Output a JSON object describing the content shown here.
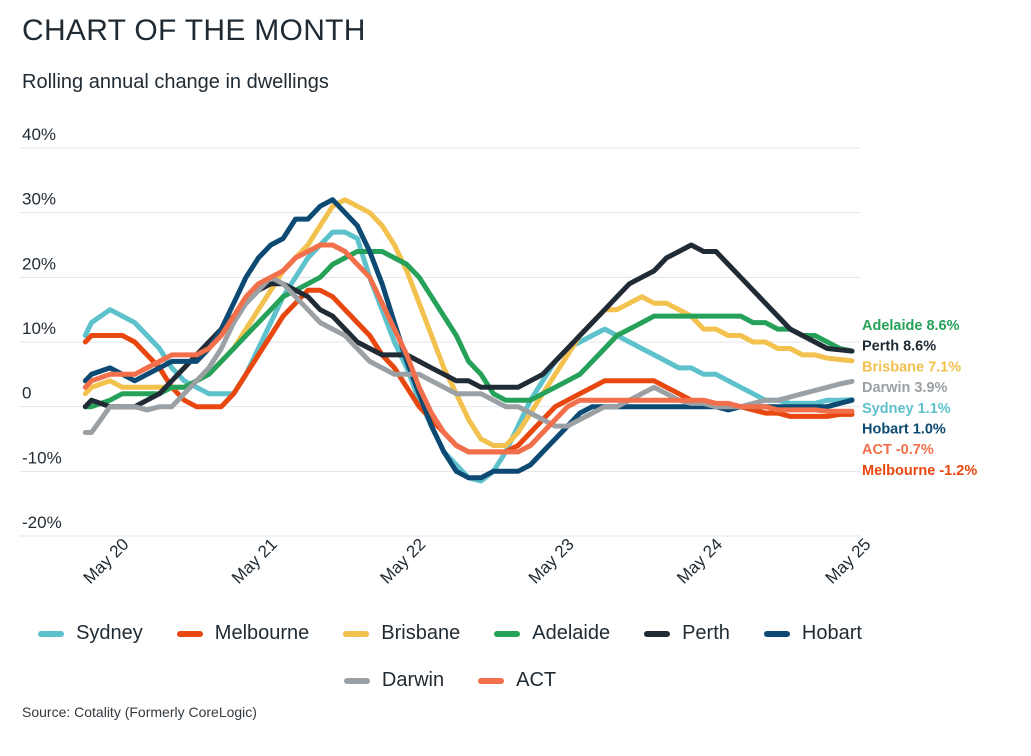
{
  "header": {
    "title": "CHART OF THE MONTH",
    "subtitle": "Rolling annual change in dwellings"
  },
  "source": "Source: Cotality (Formerly CoreLogic)",
  "chart_data": {
    "type": "line",
    "ylim": [
      -20,
      40
    ],
    "yticks": [
      40,
      30,
      20,
      10,
      0,
      -10,
      -20
    ],
    "ytick_labels": [
      "40%",
      "30%",
      "20%",
      "10%",
      "0",
      "-10%",
      "-20%"
    ],
    "x_ticks": [
      0,
      12,
      24,
      36,
      48,
      60
    ],
    "x_tick_labels": [
      "May 20",
      "May 21",
      "May 22",
      "May 23",
      "May 24",
      "May 25"
    ],
    "grid": true,
    "legend": "bottom",
    "series": [
      {
        "name": "Sydney",
        "color": "#5ec2cc",
        "end_label": "Sydney 1.1%",
        "x": [
          -2,
          -1.5,
          0,
          1,
          2,
          3,
          4,
          5,
          6,
          7,
          8,
          9,
          10,
          11,
          12,
          13,
          14,
          15,
          16,
          17,
          18,
          19,
          20,
          21,
          22,
          23,
          24,
          25,
          26,
          27,
          28,
          29,
          30,
          31,
          32,
          33,
          34,
          35,
          36,
          37,
          38,
          39,
          40,
          41,
          42,
          43,
          44,
          45,
          46,
          47,
          48,
          49,
          50,
          51,
          52,
          53,
          54,
          55,
          56,
          57,
          58,
          59,
          60
        ],
        "y": [
          11,
          13,
          15,
          14,
          13,
          11,
          9,
          6,
          4,
          3,
          2,
          2,
          2,
          5,
          9,
          13,
          17,
          20,
          23,
          25,
          27,
          27,
          26,
          20,
          15,
          10,
          6,
          1,
          -3,
          -7,
          -9,
          -11,
          -11.5,
          -10,
          -7,
          -3,
          1,
          4,
          7,
          9,
          10,
          11,
          12,
          11,
          10,
          9,
          8,
          7,
          6,
          6,
          5,
          5,
          4,
          3,
          2,
          1,
          1,
          0.5,
          0.5,
          0.5,
          1,
          1,
          1.1
        ]
      },
      {
        "name": "Melbourne",
        "color": "#e8470f",
        "end_label": "Melbourne -1.2%",
        "x": [
          -2,
          -1.5,
          0,
          1,
          2,
          3,
          4,
          5,
          6,
          7,
          8,
          9,
          10,
          11,
          12,
          13,
          14,
          15,
          16,
          17,
          18,
          19,
          20,
          21,
          22,
          23,
          24,
          25,
          26,
          27,
          28,
          29,
          30,
          31,
          32,
          33,
          34,
          35,
          36,
          37,
          38,
          39,
          40,
          41,
          42,
          43,
          44,
          45,
          46,
          47,
          48,
          49,
          50,
          51,
          52,
          53,
          54,
          55,
          56,
          57,
          58,
          59,
          60
        ],
        "y": [
          10,
          11,
          11,
          11,
          10,
          8,
          6,
          3,
          1,
          0,
          0,
          0,
          2,
          5,
          8,
          11,
          14,
          16,
          18,
          18,
          17,
          15,
          13,
          11,
          8,
          6,
          3,
          0,
          -2,
          -4,
          -6,
          -7,
          -7,
          -7,
          -7,
          -6,
          -4,
          -2,
          0,
          1,
          2,
          3,
          4,
          4,
          4,
          4,
          4,
          3,
          2,
          1,
          0.5,
          0.5,
          0,
          0,
          -0.5,
          -1,
          -1,
          -1.5,
          -1.5,
          -1.5,
          -1.5,
          -1.2,
          -1.2
        ]
      },
      {
        "name": "Brisbane",
        "color": "#f2c14e",
        "end_label": "Brisbane 7.1%",
        "x": [
          -2,
          -1.5,
          0,
          1,
          2,
          3,
          4,
          5,
          6,
          7,
          8,
          9,
          10,
          11,
          12,
          13,
          14,
          15,
          16,
          17,
          18,
          19,
          20,
          21,
          22,
          23,
          24,
          25,
          26,
          27,
          28,
          29,
          30,
          31,
          32,
          33,
          34,
          35,
          36,
          37,
          38,
          39,
          40,
          41,
          42,
          43,
          44,
          45,
          46,
          47,
          48,
          49,
          50,
          51,
          52,
          53,
          54,
          55,
          56,
          57,
          58,
          59,
          60
        ],
        "y": [
          2,
          3,
          4,
          3,
          3,
          3,
          3,
          3,
          3,
          4,
          5,
          7,
          9,
          12,
          15,
          18,
          21,
          23,
          25,
          28,
          31,
          32,
          31,
          30,
          28,
          25,
          21,
          16,
          11,
          6,
          2,
          -2,
          -5,
          -6,
          -6,
          -4,
          -1,
          2,
          5,
          8,
          11,
          13,
          15,
          15,
          16,
          17,
          16,
          16,
          15,
          14,
          12,
          12,
          11,
          11,
          10,
          10,
          9,
          9,
          8,
          8,
          7.5,
          7.3,
          7.1
        ]
      },
      {
        "name": "Adelaide",
        "color": "#25a159",
        "end_label": "Adelaide 8.6%",
        "x": [
          -2,
          -1.5,
          0,
          1,
          2,
          3,
          4,
          5,
          6,
          7,
          8,
          9,
          10,
          11,
          12,
          13,
          14,
          15,
          16,
          17,
          18,
          19,
          20,
          21,
          22,
          23,
          24,
          25,
          26,
          27,
          28,
          29,
          30,
          31,
          32,
          33,
          34,
          35,
          36,
          37,
          38,
          39,
          40,
          41,
          42,
          43,
          44,
          45,
          46,
          47,
          48,
          49,
          50,
          51,
          52,
          53,
          54,
          55,
          56,
          57,
          58,
          59,
          60
        ],
        "y": [
          0,
          0,
          1,
          2,
          2,
          2,
          2,
          3,
          3,
          4,
          5,
          7,
          9,
          11,
          13,
          15,
          17,
          18,
          19,
          20,
          22,
          23,
          24,
          24,
          24,
          23,
          22,
          20,
          17,
          14,
          11,
          7,
          5,
          2,
          1,
          1,
          1,
          2,
          3,
          4,
          5,
          7,
          9,
          11,
          12,
          13,
          14,
          14,
          14,
          14,
          14,
          14,
          14,
          14,
          13,
          13,
          12,
          12,
          11,
          11,
          10,
          9,
          8.6
        ]
      },
      {
        "name": "Perth",
        "color": "#212b36",
        "end_label": "Perth 8.6%",
        "x": [
          -2,
          -1.5,
          0,
          1,
          2,
          3,
          4,
          5,
          6,
          7,
          8,
          9,
          10,
          11,
          12,
          13,
          14,
          15,
          16,
          17,
          18,
          19,
          20,
          21,
          22,
          23,
          24,
          25,
          26,
          27,
          28,
          29,
          30,
          31,
          32,
          33,
          34,
          35,
          36,
          37,
          38,
          39,
          40,
          41,
          42,
          43,
          44,
          45,
          46,
          47,
          48,
          49,
          50,
          51,
          52,
          53,
          54,
          55,
          56,
          57,
          58,
          59,
          60
        ],
        "y": [
          0,
          1,
          0,
          0,
          0,
          1,
          2,
          4,
          6,
          8,
          10,
          12,
          14,
          16,
          18,
          19,
          19,
          18,
          17,
          15,
          14,
          12,
          10,
          9,
          8,
          8,
          8,
          7,
          6,
          5,
          4,
          4,
          3,
          3,
          3,
          3,
          4,
          5,
          7,
          9,
          11,
          13,
          15,
          17,
          19,
          20,
          21,
          23,
          24,
          25,
          24,
          24,
          22,
          20,
          18,
          16,
          14,
          12,
          11,
          10,
          9,
          8.8,
          8.6
        ]
      },
      {
        "name": "Hobart",
        "color": "#0d4a73",
        "end_label": "Hobart 1.0%",
        "x": [
          -2,
          -1.5,
          0,
          1,
          2,
          3,
          4,
          5,
          6,
          7,
          8,
          9,
          10,
          11,
          12,
          13,
          14,
          15,
          16,
          17,
          18,
          19,
          20,
          21,
          22,
          23,
          24,
          25,
          26,
          27,
          28,
          29,
          30,
          31,
          32,
          33,
          34,
          35,
          36,
          37,
          38,
          39,
          40,
          41,
          42,
          43,
          44,
          45,
          46,
          47,
          48,
          49,
          50,
          51,
          52,
          53,
          54,
          55,
          56,
          57,
          58,
          59,
          60
        ],
        "y": [
          4,
          5,
          6,
          5,
          4,
          5,
          6,
          7,
          7,
          7,
          9,
          12,
          16,
          20,
          23,
          25,
          26,
          29,
          29,
          31,
          32,
          30,
          28,
          24,
          19,
          13,
          7,
          2,
          -3,
          -7,
          -10,
          -11,
          -11,
          -10,
          -10,
          -10,
          -9,
          -7,
          -5,
          -3,
          -1,
          0,
          0,
          0,
          0,
          0,
          0,
          0,
          0,
          0,
          0,
          0,
          -0.5,
          0,
          0,
          0,
          0,
          0,
          0,
          0,
          0,
          0.5,
          1.0
        ]
      },
      {
        "name": "Darwin",
        "color": "#9aa0a4",
        "end_label": "Darwin 3.9%",
        "x": [
          -2,
          -1.5,
          0,
          1,
          2,
          3,
          4,
          5,
          6,
          7,
          8,
          9,
          10,
          11,
          12,
          13,
          14,
          15,
          16,
          17,
          18,
          19,
          20,
          21,
          22,
          23,
          24,
          25,
          26,
          27,
          28,
          29,
          30,
          31,
          32,
          33,
          34,
          35,
          36,
          37,
          38,
          39,
          40,
          41,
          42,
          43,
          44,
          45,
          46,
          47,
          48,
          49,
          50,
          51,
          52,
          53,
          54,
          55,
          56,
          57,
          58,
          59,
          60
        ],
        "y": [
          -4,
          -4,
          0,
          0,
          0,
          -0.5,
          0,
          0,
          2,
          4,
          6,
          9,
          13,
          16,
          18,
          20,
          19,
          17,
          15,
          13,
          12,
          11,
          9,
          7,
          6,
          5,
          5,
          5,
          4,
          3,
          2,
          2,
          2,
          1,
          0,
          0,
          -1,
          -2,
          -3,
          -3,
          -2,
          -1,
          0,
          0,
          1,
          2,
          3,
          2,
          1,
          0.5,
          0.5,
          0,
          0,
          0,
          0.5,
          1,
          1,
          1.5,
          2,
          2.5,
          3,
          3.5,
          3.9
        ]
      },
      {
        "name": "ACT",
        "color": "#f26f4b",
        "end_label": "ACT -0.7%",
        "x": [
          -2,
          -1.5,
          0,
          1,
          2,
          3,
          4,
          5,
          6,
          7,
          8,
          9,
          10,
          11,
          12,
          13,
          14,
          15,
          16,
          17,
          18,
          19,
          20,
          21,
          22,
          23,
          24,
          25,
          26,
          27,
          28,
          29,
          30,
          31,
          32,
          33,
          34,
          35,
          36,
          37,
          38,
          39,
          40,
          41,
          42,
          43,
          44,
          45,
          46,
          47,
          48,
          49,
          50,
          51,
          52,
          53,
          54,
          55,
          56,
          57,
          58,
          59,
          60
        ],
        "y": [
          3,
          4,
          5,
          5,
          5,
          6,
          7,
          8,
          8,
          8,
          9,
          11,
          14,
          17,
          19,
          20,
          21,
          23,
          24,
          25,
          25,
          24,
          22,
          20,
          16,
          12,
          8,
          3,
          -1,
          -4,
          -6,
          -7,
          -7,
          -7,
          -7,
          -7,
          -6,
          -4,
          -2,
          0,
          1,
          1,
          1,
          1,
          1,
          1,
          1,
          1,
          1,
          1,
          1,
          0.5,
          0.5,
          0,
          0,
          0,
          -0.5,
          -0.5,
          -0.5,
          -0.5,
          -0.7,
          -0.7,
          -0.7
        ]
      }
    ]
  }
}
